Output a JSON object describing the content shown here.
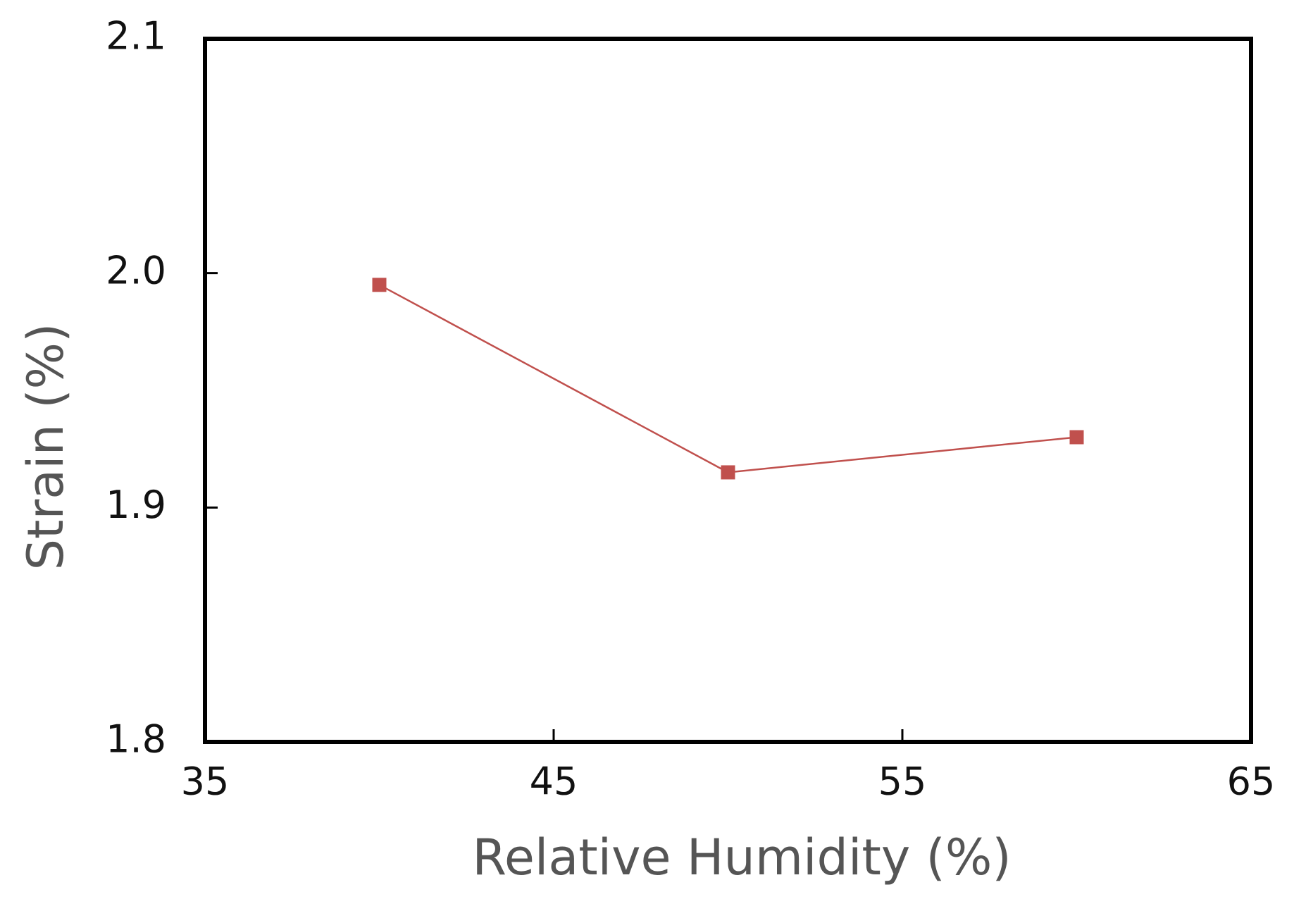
{
  "chart_data": {
    "type": "line",
    "x_label": "Relative Humidity (%)",
    "y_label": "Strain (%)",
    "x": [
      40,
      50,
      60
    ],
    "values": [
      1.995,
      1.915,
      1.93
    ],
    "color": "#c0504d",
    "marker": "square",
    "xlim": [
      35,
      65
    ],
    "xticks": [
      35,
      45,
      55,
      65
    ],
    "ylim": [
      1.8,
      2.1
    ],
    "yticks": [
      1.8,
      1.9,
      {
        "value": 2.0,
        "label": "2.0"
      },
      2.1
    ],
    "grid": false
  }
}
